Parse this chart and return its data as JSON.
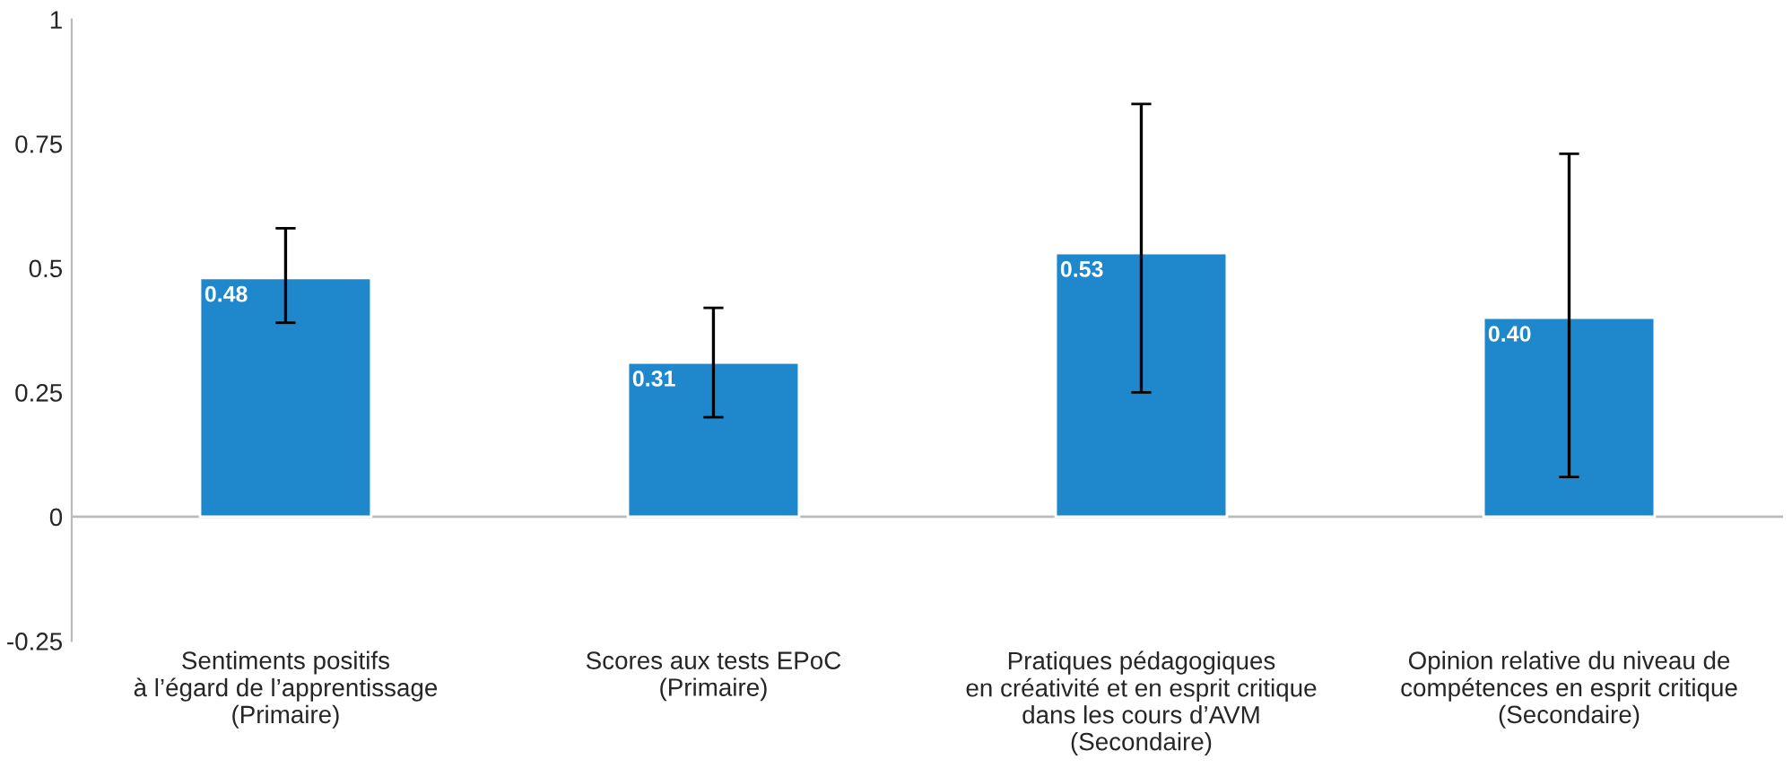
{
  "chart_data": {
    "type": "bar",
    "categories": [
      "Sentiments positifs\nà l’égard de l’apprentissage\n(Primaire)",
      "Scores aux tests EPoC\n(Primaire)",
      "Pratiques pédagogiques\nen créativité et en esprit critique\ndans les cours d’AVM\n(Secondaire)",
      "Opinion relative du niveau de\ncompétences en esprit critique\n(Secondaire)"
    ],
    "values": [
      0.48,
      0.31,
      0.53,
      0.4
    ],
    "errors": [
      [
        0.39,
        0.58
      ],
      [
        0.2,
        0.42
      ],
      [
        0.25,
        0.83
      ],
      [
        0.08,
        0.73
      ]
    ],
    "value_labels": [
      "0.48",
      "0.31",
      "0.53",
      "0.40"
    ],
    "color": "#1f88cc",
    "ylim": [
      -0.25,
      1
    ],
    "yticks": [
      -0.25,
      0,
      0.25,
      0.5,
      0.75,
      1
    ],
    "ref_lines": [
      {
        "axis": "y",
        "value": 0,
        "color": "#bbbbbb"
      }
    ],
    "grid": false
  }
}
